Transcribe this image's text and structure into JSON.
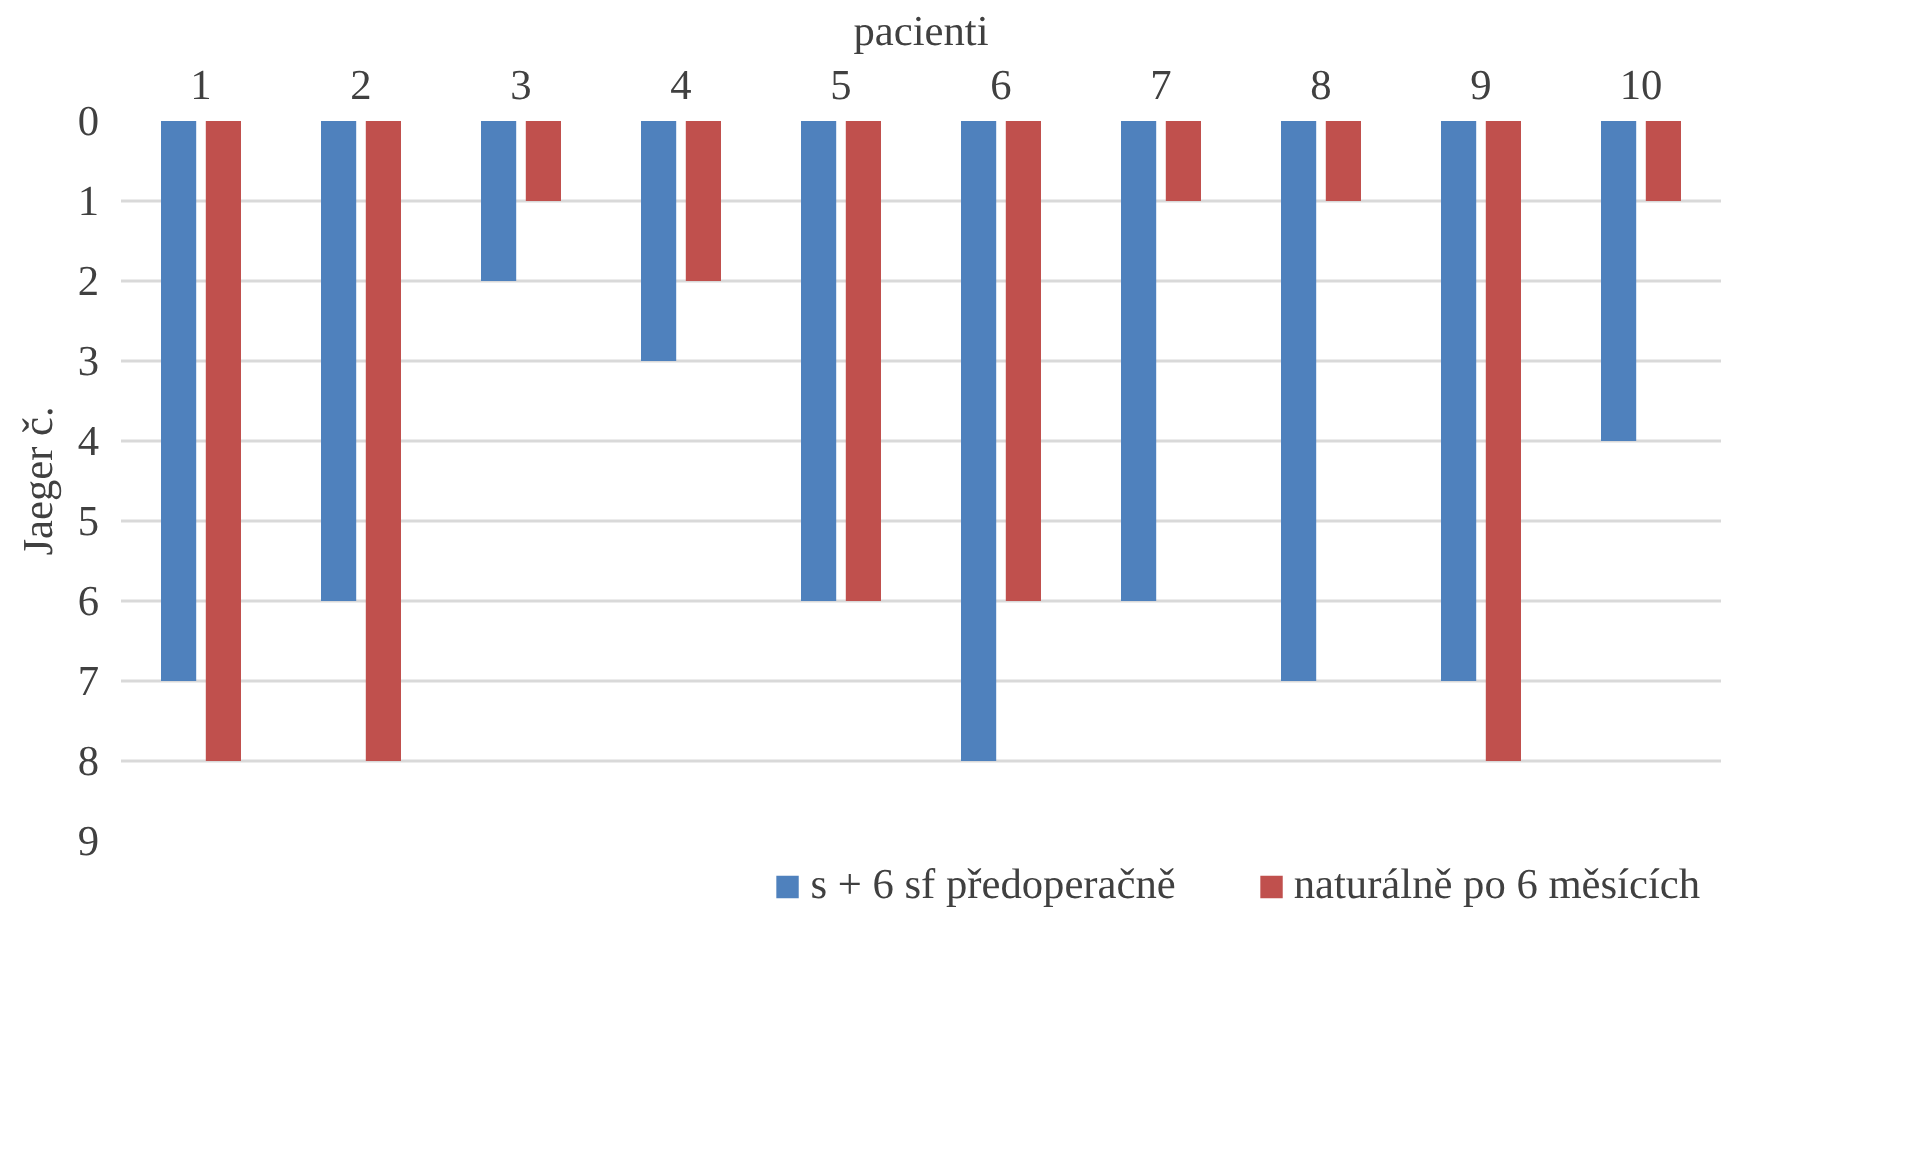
{
  "chart_data": {
    "type": "bar",
    "xlabel": "pacienti",
    "ylabel": "Jaeger č.",
    "categories": [
      "1",
      "2",
      "3",
      "4",
      "5",
      "6",
      "7",
      "8",
      "9",
      "10"
    ],
    "series": [
      {
        "name": "s + 6 sf předoperačně",
        "color": "#4f81bd",
        "values": [
          7,
          6,
          2,
          3,
          6,
          8,
          6,
          7,
          7,
          4
        ]
      },
      {
        "name": "naturálně po 6 měsících",
        "color": "#c0504d",
        "values": [
          8,
          8,
          1,
          2,
          6,
          6,
          1,
          1,
          8,
          1
        ]
      }
    ],
    "ylim": [
      9,
      0
    ],
    "yticks": [
      0,
      1,
      2,
      3,
      4,
      5,
      6,
      7,
      8,
      9
    ],
    "grid": "y",
    "legend": "bottom"
  }
}
